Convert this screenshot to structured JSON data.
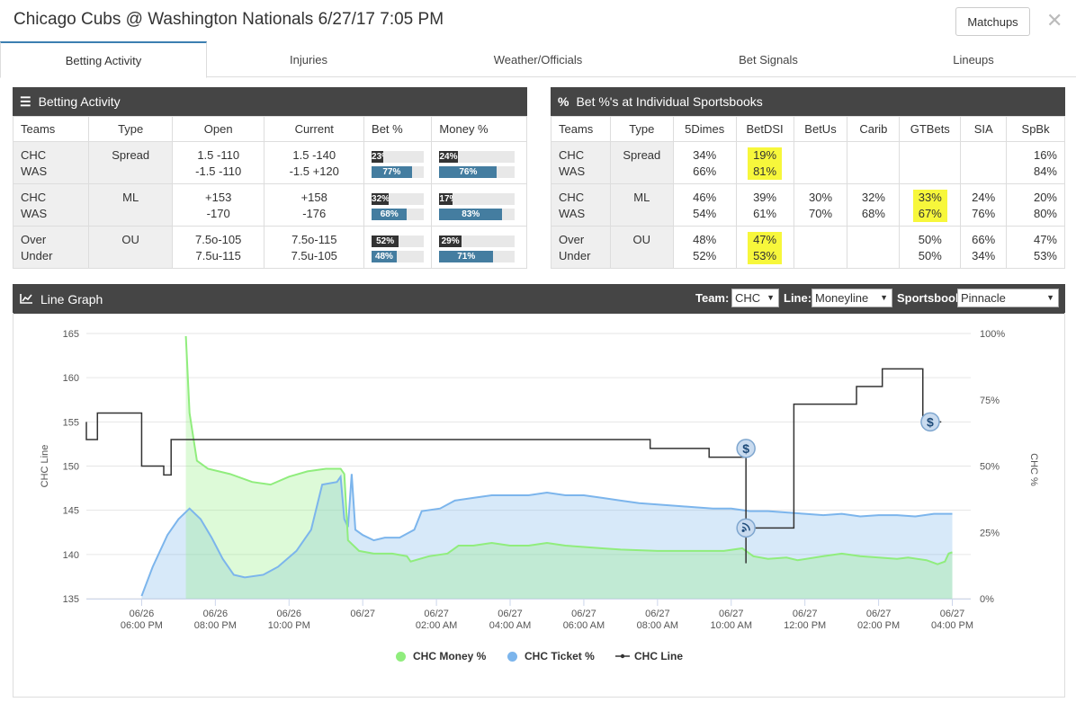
{
  "header": {
    "title": "Chicago Cubs @ Washington Nationals 6/27/17 7:05 PM",
    "matchups_label": "Matchups",
    "close_glyph": "✕"
  },
  "tabs": [
    {
      "label": "Betting Activity",
      "active": true
    },
    {
      "label": "Injuries"
    },
    {
      "label": "Weather/Officials"
    },
    {
      "label": "Bet Signals"
    },
    {
      "label": "Lineups"
    }
  ],
  "betting_activity": {
    "title": "Betting Activity",
    "icon": "list-icon",
    "columns": [
      "Teams",
      "Type",
      "Open",
      "Current",
      "Bet %",
      "Money %"
    ],
    "rows": [
      {
        "teams": [
          "CHC",
          "WAS"
        ],
        "type": "Spread",
        "open": [
          "1.5 -110",
          "-1.5 -110"
        ],
        "current": [
          "1.5 -140",
          "-1.5 +120"
        ],
        "bet": [
          "23%",
          "77%"
        ],
        "bet_val": [
          23,
          77
        ],
        "money": [
          "24%",
          "76%"
        ],
        "money_val": [
          24,
          76
        ]
      },
      {
        "teams": [
          "CHC",
          "WAS"
        ],
        "type": "ML",
        "open": [
          "+153",
          "-170"
        ],
        "current": [
          "+158",
          "-176"
        ],
        "bet": [
          "32%",
          "68%"
        ],
        "bet_val": [
          32,
          68
        ],
        "money": [
          "17%",
          "83%"
        ],
        "money_val": [
          17,
          83
        ]
      },
      {
        "teams": [
          "Over",
          "Under"
        ],
        "type": "OU",
        "open": [
          "7.5o-105",
          "7.5u-115"
        ],
        "current": [
          "7.5o-115",
          "7.5u-105"
        ],
        "bet": [
          "52%",
          "48%"
        ],
        "bet_val": [
          52,
          48
        ],
        "money": [
          "29%",
          "71%"
        ],
        "money_val": [
          29,
          71
        ]
      }
    ],
    "colors": {
      "dark_bar": "#333333",
      "blue_bar": "#447da0"
    }
  },
  "sportsbooks": {
    "title": "Bet %'s at Individual Sportsbooks",
    "icon": "percent-icon",
    "columns": [
      "Teams",
      "Type",
      "5Dimes",
      "BetDSI",
      "BetUs",
      "Carib",
      "GTBets",
      "SIA",
      "SpBk"
    ],
    "rows": [
      {
        "teams": [
          "CHC",
          "WAS"
        ],
        "type": "Spread",
        "books": [
          [
            "34%",
            "66%"
          ],
          [
            "19%",
            "81%"
          ],
          [
            "",
            ""
          ],
          [
            "",
            ""
          ],
          [
            "",
            ""
          ],
          [
            "",
            ""
          ],
          [
            "16%",
            "84%"
          ]
        ],
        "highlight": [
          false,
          true,
          false,
          false,
          false,
          false,
          false
        ]
      },
      {
        "teams": [
          "CHC",
          "WAS"
        ],
        "type": "ML",
        "books": [
          [
            "46%",
            "54%"
          ],
          [
            "39%",
            "61%"
          ],
          [
            "30%",
            "70%"
          ],
          [
            "32%",
            "68%"
          ],
          [
            "33%",
            "67%"
          ],
          [
            "24%",
            "76%"
          ],
          [
            "20%",
            "80%"
          ]
        ],
        "highlight": [
          false,
          false,
          false,
          false,
          true,
          false,
          false
        ]
      },
      {
        "teams": [
          "Over",
          "Under"
        ],
        "type": "OU",
        "books": [
          [
            "48%",
            "52%"
          ],
          [
            "47%",
            "53%"
          ],
          [
            "",
            ""
          ],
          [
            "",
            ""
          ],
          [
            "50%",
            "50%"
          ],
          [
            "66%",
            "34%"
          ],
          [
            "47%",
            "53%"
          ]
        ],
        "highlight": [
          false,
          true,
          false,
          false,
          false,
          false,
          false
        ]
      }
    ],
    "highlight_color": "#f7f73b"
  },
  "line_graph": {
    "title": "Line Graph",
    "icon": "line-chart-icon",
    "controls": {
      "team_label": "Team:",
      "team_value": "CHC",
      "line_label": "Line:",
      "line_value": "Moneyline",
      "sportsbook_label": "Sportsbook:",
      "sportsbook_value": "Pinnacle"
    },
    "legend": [
      {
        "name": "CHC Money %",
        "color": "#90ed7d"
      },
      {
        "name": "CHC Ticket %",
        "color": "#7cb5ec"
      },
      {
        "name": "CHC Line",
        "color": "#333333"
      }
    ]
  },
  "chart_data": {
    "type": "line",
    "title": "",
    "xlabel": "",
    "ylabel": "CHC Line",
    "y2label": "CHC %",
    "ylim": [
      135,
      165
    ],
    "y2lim": [
      0,
      100
    ],
    "yticks": [
      "135",
      "140",
      "145",
      "150",
      "155",
      "160",
      "165"
    ],
    "y2ticks": [
      "0%",
      "25%",
      "50%",
      "75%",
      "100%"
    ],
    "xlim": [
      16.5,
      40.5
    ],
    "xticks": [
      {
        "x": 18,
        "l1": "06/26",
        "l2": "06:00 PM"
      },
      {
        "x": 20,
        "l1": "06/26",
        "l2": "08:00 PM"
      },
      {
        "x": 22,
        "l1": "06/26",
        "l2": "10:00 PM"
      },
      {
        "x": 24,
        "l1": "06/27",
        "l2": ""
      },
      {
        "x": 26,
        "l1": "06/27",
        "l2": "02:00 AM"
      },
      {
        "x": 28,
        "l1": "06/27",
        "l2": "04:00 AM"
      },
      {
        "x": 30,
        "l1": "06/27",
        "l2": "06:00 AM"
      },
      {
        "x": 32,
        "l1": "06/27",
        "l2": "08:00 AM"
      },
      {
        "x": 34,
        "l1": "06/27",
        "l2": "10:00 AM"
      },
      {
        "x": 36,
        "l1": "06/27",
        "l2": "12:00 PM"
      },
      {
        "x": 38,
        "l1": "06/27",
        "l2": "02:00 PM"
      },
      {
        "x": 40,
        "l1": "06/27",
        "l2": "04:00 PM"
      }
    ],
    "series": [
      {
        "name": "CHC Money %",
        "axis": "pct",
        "color": "#90ed7d",
        "points": [
          [
            19.2,
            99
          ],
          [
            19.3,
            70
          ],
          [
            19.5,
            52
          ],
          [
            19.8,
            49
          ],
          [
            20.4,
            47
          ],
          [
            21.0,
            44
          ],
          [
            21.5,
            43
          ],
          [
            22.0,
            46
          ],
          [
            22.5,
            48
          ],
          [
            23.0,
            49
          ],
          [
            23.4,
            49
          ],
          [
            23.5,
            47
          ],
          [
            23.6,
            22
          ],
          [
            23.9,
            18
          ],
          [
            24.3,
            17
          ],
          [
            24.8,
            17
          ],
          [
            25.2,
            16
          ],
          [
            25.3,
            14
          ],
          [
            25.8,
            16
          ],
          [
            26.3,
            17
          ],
          [
            26.6,
            20
          ],
          [
            27.0,
            20
          ],
          [
            27.5,
            21
          ],
          [
            28.0,
            20
          ],
          [
            28.5,
            20
          ],
          [
            29.0,
            21
          ],
          [
            29.5,
            20
          ],
          [
            30.0,
            19.5
          ],
          [
            30.5,
            19
          ],
          [
            31.0,
            18.5
          ],
          [
            32.0,
            18
          ],
          [
            33.0,
            18
          ],
          [
            33.8,
            18
          ],
          [
            34.3,
            19
          ],
          [
            34.6,
            16
          ],
          [
            35.0,
            15
          ],
          [
            35.5,
            15.5
          ],
          [
            35.8,
            14.5
          ],
          [
            36.5,
            16
          ],
          [
            37.0,
            17
          ],
          [
            37.5,
            16
          ],
          [
            38.0,
            15.5
          ],
          [
            38.5,
            15
          ],
          [
            38.8,
            15.5
          ],
          [
            39.3,
            14.5
          ],
          [
            39.6,
            13
          ],
          [
            39.8,
            14
          ],
          [
            39.9,
            17
          ],
          [
            40.0,
            17.5
          ]
        ]
      },
      {
        "name": "CHC Ticket %",
        "axis": "pct",
        "color": "#7cb5ec",
        "points": [
          [
            18.0,
            1
          ],
          [
            18.3,
            12
          ],
          [
            18.7,
            24
          ],
          [
            19.0,
            30
          ],
          [
            19.3,
            34
          ],
          [
            19.6,
            30
          ],
          [
            19.9,
            23
          ],
          [
            20.2,
            15
          ],
          [
            20.5,
            9
          ],
          [
            20.8,
            8
          ],
          [
            21.3,
            9
          ],
          [
            21.7,
            12
          ],
          [
            22.2,
            18
          ],
          [
            22.6,
            26
          ],
          [
            22.9,
            43
          ],
          [
            23.3,
            44
          ],
          [
            23.4,
            46
          ],
          [
            23.5,
            30
          ],
          [
            23.6,
            27
          ],
          [
            23.7,
            47
          ],
          [
            23.8,
            26
          ],
          [
            24.0,
            24
          ],
          [
            24.3,
            22
          ],
          [
            24.6,
            23
          ],
          [
            25.0,
            23
          ],
          [
            25.4,
            26
          ],
          [
            25.6,
            33
          ],
          [
            26.1,
            34
          ],
          [
            26.5,
            37
          ],
          [
            27.0,
            38
          ],
          [
            27.5,
            39
          ],
          [
            28.0,
            39
          ],
          [
            28.5,
            39
          ],
          [
            29.0,
            40
          ],
          [
            29.5,
            39
          ],
          [
            30.0,
            39
          ],
          [
            30.5,
            38
          ],
          [
            31.0,
            37
          ],
          [
            31.5,
            36
          ],
          [
            32.0,
            35.5
          ],
          [
            32.5,
            35
          ],
          [
            33.0,
            34.5
          ],
          [
            33.5,
            34
          ],
          [
            34.0,
            34
          ],
          [
            34.5,
            33
          ],
          [
            35.0,
            33
          ],
          [
            35.5,
            32.5
          ],
          [
            36.0,
            32
          ],
          [
            36.5,
            31.5
          ],
          [
            37.0,
            32
          ],
          [
            37.5,
            31
          ],
          [
            38.0,
            31.5
          ],
          [
            38.5,
            31.5
          ],
          [
            39.0,
            31
          ],
          [
            39.5,
            32
          ],
          [
            40.0,
            32
          ]
        ]
      },
      {
        "name": "CHC Line",
        "axis": "line",
        "color": "#333333",
        "points": [
          [
            16.5,
            155
          ],
          [
            16.5,
            153
          ],
          [
            16.8,
            153
          ],
          [
            16.8,
            156
          ],
          [
            18.0,
            156
          ],
          [
            18.0,
            150
          ],
          [
            18.6,
            150
          ],
          [
            18.6,
            149
          ],
          [
            18.8,
            149
          ],
          [
            18.8,
            153
          ],
          [
            31.8,
            153
          ],
          [
            31.8,
            152
          ],
          [
            33.4,
            152
          ],
          [
            33.4,
            151
          ],
          [
            33.9,
            151
          ],
          [
            34.4,
            151
          ],
          [
            34.4,
            139
          ],
          [
            34.4,
            143
          ],
          [
            35.7,
            143
          ],
          [
            35.7,
            157
          ],
          [
            37.4,
            157
          ],
          [
            37.4,
            159
          ],
          [
            38.1,
            159
          ],
          [
            38.1,
            161
          ],
          [
            39.2,
            161
          ],
          [
            39.2,
            155
          ],
          [
            39.7,
            155
          ]
        ]
      }
    ],
    "markers": [
      {
        "x": 34.4,
        "y": 152,
        "kind": "dollar-icon"
      },
      {
        "x": 34.4,
        "y": 143,
        "kind": "signal-icon"
      },
      {
        "x": 39.4,
        "y": 155,
        "kind": "dollar-icon"
      }
    ],
    "grid": true,
    "legend_position": "bottom"
  }
}
